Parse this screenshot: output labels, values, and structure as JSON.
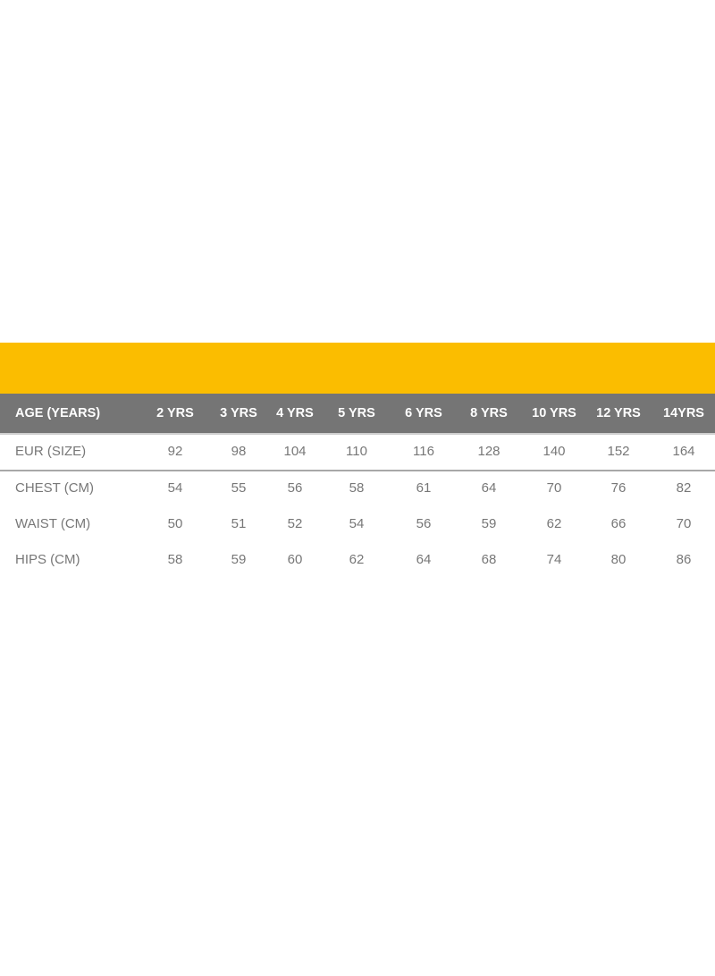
{
  "colors": {
    "band": "#fbbd00",
    "header": "#757575",
    "text": "#777777"
  },
  "table": {
    "header": {
      "label": "AGE (YEARS)",
      "columns": [
        "2 YRS",
        "3 YRS",
        "4 YRS",
        "5 YRS",
        "6 YRS",
        "8 YRS",
        "10 YRS",
        "12 YRS",
        "14YRS"
      ]
    },
    "rows": [
      {
        "label": "EUR (SIZE)",
        "values": [
          "92",
          "98",
          "104",
          "110",
          "116",
          "128",
          "140",
          "152",
          "164"
        ]
      },
      {
        "label": "CHEST (CM)",
        "values": [
          "54",
          "55",
          "56",
          "58",
          "61",
          "64",
          "70",
          "76",
          "82"
        ]
      },
      {
        "label": "WAIST (CM)",
        "values": [
          "50",
          "51",
          "52",
          "54",
          "56",
          "59",
          "62",
          "66",
          "70"
        ]
      },
      {
        "label": "HIPS (CM)",
        "values": [
          "58",
          "59",
          "60",
          "62",
          "64",
          "68",
          "74",
          "80",
          "86"
        ]
      }
    ]
  }
}
